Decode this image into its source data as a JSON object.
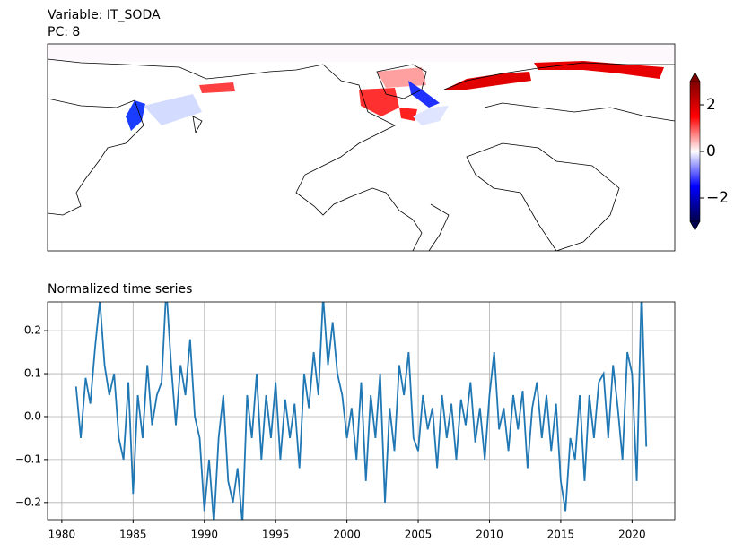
{
  "chart_data": [
    {
      "type": "map",
      "title": "Variable: IT_SODA",
      "subtitle": "PC: 8",
      "colorbar": {
        "clim": [
          -3,
          3
        ],
        "ticks": [
          {
            "value": -2,
            "label": "−2"
          },
          0,
          2
        ]
      }
    },
    {
      "type": "line",
      "title": "Normalized time series",
      "color": "#1f77b4",
      "grid": true,
      "xlim": [
        1979,
        2023
      ],
      "ylim": [
        -0.24,
        0.267
      ],
      "xticks": [
        1980,
        1985,
        1990,
        1995,
        2000,
        2005,
        2010,
        2015,
        2020
      ],
      "yticks": [
        {
          "value": -0.2,
          "label": "−0.2"
        },
        {
          "value": -0.1,
          "label": "−0.1"
        },
        {
          "value": 0,
          "label": "0.0"
        },
        0.1,
        0.2
      ],
      "x": [
        1981,
        1981.33,
        1981.67,
        1982,
        1982.33,
        1982.67,
        1983,
        1983.33,
        1983.67,
        1984,
        1984.33,
        1984.67,
        1985,
        1985.33,
        1985.67,
        1986,
        1986.33,
        1986.67,
        1987,
        1987.33,
        1987.67,
        1988,
        1988.33,
        1988.67,
        1989,
        1989.33,
        1989.67,
        1990,
        1990.33,
        1990.67,
        1991,
        1991.33,
        1991.67,
        1992,
        1992.33,
        1992.67,
        1993,
        1993.33,
        1993.67,
        1994,
        1994.33,
        1994.67,
        1995,
        1995.33,
        1995.67,
        1996,
        1996.33,
        1996.67,
        1997,
        1997.33,
        1997.67,
        1998,
        1998.33,
        1998.67,
        1999,
        1999.33,
        1999.67,
        2000,
        2000.33,
        2000.67,
        2001,
        2001.33,
        2001.67,
        2002,
        2002.33,
        2002.67,
        2003,
        2003.33,
        2003.67,
        2004,
        2004.33,
        2004.67,
        2005,
        2005.33,
        2005.67,
        2006,
        2006.33,
        2006.67,
        2007,
        2007.33,
        2007.67,
        2008,
        2008.33,
        2008.67,
        2009,
        2009.33,
        2009.67,
        2010,
        2010.33,
        2010.67,
        2011,
        2011.33,
        2011.67,
        2012,
        2012.33,
        2012.67,
        2013,
        2013.33,
        2013.67,
        2014,
        2014.33,
        2014.67,
        2015,
        2015.33,
        2015.67,
        2016,
        2016.33,
        2016.67,
        2017,
        2017.33,
        2017.67,
        2018,
        2018.33,
        2018.67,
        2019,
        2019.33,
        2019.67,
        2020,
        2020.33,
        2020.67,
        2021
      ],
      "values": [
        0.07,
        -0.05,
        0.09,
        0.03,
        0.16,
        0.27,
        0.12,
        0.05,
        0.1,
        -0.05,
        -0.1,
        0.08,
        -0.18,
        0.05,
        -0.05,
        0.12,
        -0.02,
        0.05,
        0.08,
        0.3,
        0.12,
        -0.02,
        0.12,
        0.05,
        0.18,
        0.0,
        -0.05,
        -0.22,
        -0.1,
        -0.25,
        -0.05,
        0.05,
        -0.15,
        -0.2,
        -0.12,
        -0.25,
        0.05,
        -0.05,
        0.1,
        -0.1,
        0.05,
        -0.05,
        0.08,
        -0.1,
        0.04,
        -0.05,
        0.03,
        -0.12,
        0.1,
        0.02,
        0.15,
        0.05,
        0.28,
        0.12,
        0.22,
        0.1,
        0.05,
        -0.05,
        0.02,
        -0.1,
        0.08,
        -0.15,
        0.05,
        -0.05,
        0.1,
        -0.2,
        0.02,
        -0.08,
        0.12,
        0.05,
        0.15,
        -0.05,
        -0.08,
        0.05,
        -0.03,
        0.02,
        -0.12,
        0.05,
        -0.05,
        0.03,
        -0.1,
        0.04,
        -0.02,
        0.08,
        -0.06,
        0.02,
        -0.1,
        0.05,
        0.15,
        -0.03,
        0.02,
        -0.08,
        0.05,
        -0.03,
        0.06,
        -0.12,
        0.02,
        0.08,
        -0.05,
        0.05,
        -0.08,
        0.03,
        -0.15,
        -0.22,
        -0.05,
        -0.1,
        0.05,
        -0.15,
        0.05,
        -0.05,
        0.08,
        0.1,
        -0.05,
        0.12,
        0.02,
        -0.1,
        0.15,
        0.1,
        -0.15,
        0.3,
        -0.07
      ]
    }
  ]
}
